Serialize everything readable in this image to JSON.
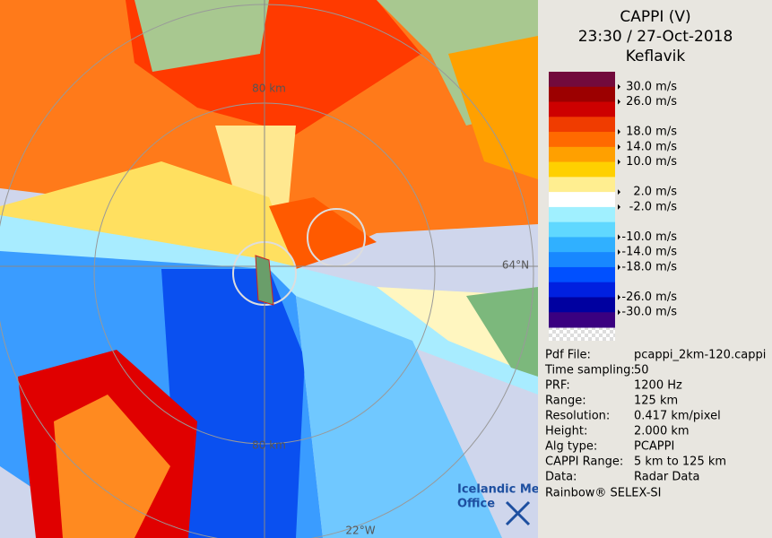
{
  "header": {
    "title": "CAPPI (V)",
    "time": "23:30 / 27-Oct-2018",
    "site": "Keflavik"
  },
  "legend": {
    "labels": [
      "30.0 m/s",
      "26.0 m/s",
      "18.0 m/s",
      "14.0 m/s",
      "10.0 m/s",
      "2.0 m/s",
      "-2.0 m/s",
      "-10.0 m/s",
      "-14.0 m/s",
      "-18.0 m/s",
      "-26.0 m/s",
      "-30.0 m/s"
    ]
  },
  "info": {
    "rows": [
      [
        "Pdf File:",
        "pcappi_2km-120.cappi"
      ],
      [
        "Time sampling:",
        "50"
      ],
      [
        "PRF:",
        "1200 Hz"
      ],
      [
        "Range:",
        "125 km"
      ],
      [
        "Resolution:",
        "0.417 km/pixel"
      ],
      [
        "Height:",
        "2.000 km"
      ],
      [
        "Alg type:",
        "PCAPPI"
      ],
      [
        "CAPPI Range:",
        "5 km to 125 km"
      ],
      [
        "Data:",
        "Radar Data"
      ]
    ],
    "footer": "Rainbow® SELEX-SI"
  },
  "map": {
    "ring_top": "80 km",
    "ring_bottom": "80 km",
    "lat_label": "64°N",
    "lon_label": "22°W",
    "logo_line1": "Icelandic Met",
    "logo_line2": "Office"
  }
}
